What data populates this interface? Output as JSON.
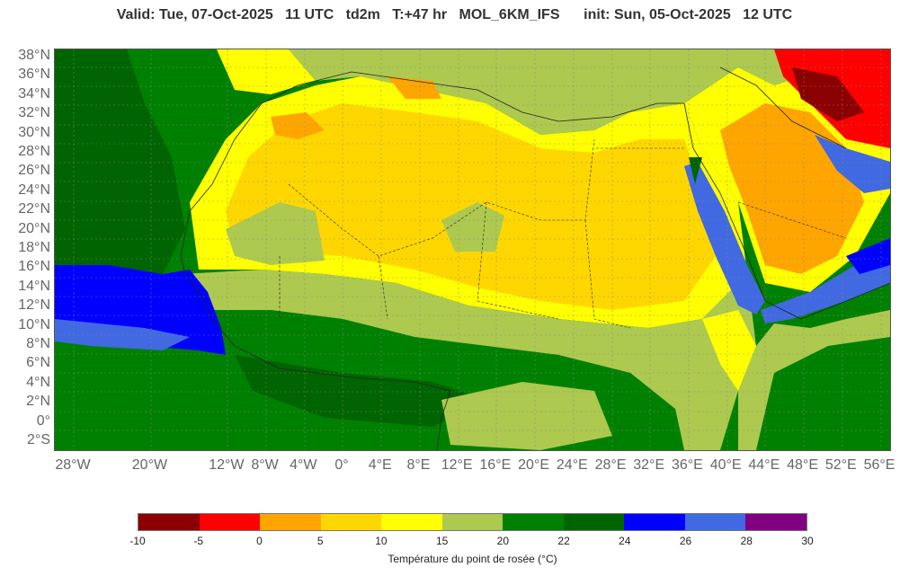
{
  "header": {
    "title": "Valid: Tue, 07-Oct-2025   11 UTC   td2m   T:+47 hr   MOL_6KM_IFS      init: Sun, 05-Oct-2025   12 UTC"
  },
  "map": {
    "region": "North Africa and Arabian Peninsula",
    "projection": "equirectangular",
    "lon_range": [
      -30,
      57
    ],
    "lat_range": [
      -4,
      38
    ],
    "lat_labels": [
      "38°N",
      "36°N",
      "34°N",
      "32°N",
      "30°N",
      "28°N",
      "26°N",
      "24°N",
      "22°N",
      "20°N",
      "18°N",
      "16°N",
      "14°N",
      "12°N",
      "10°N",
      "8°N",
      "6°N",
      "4°N",
      "2°N",
      "0°",
      "2°S"
    ],
    "lon_labels": [
      "28°W",
      "20°W",
      "12°W",
      "8°W",
      "4°W",
      "0°",
      "4°E",
      "8°E",
      "12°E",
      "16°E",
      "20°E",
      "24°E",
      "28°E",
      "32°E",
      "36°E",
      "40°E",
      "44°E",
      "48°E",
      "52°E",
      "56°E"
    ]
  },
  "colorbar": {
    "label": "Température du point de rosée (°C)",
    "ticks": [
      "-10",
      "-5",
      "0",
      "5",
      "10",
      "15",
      "20",
      "22",
      "24",
      "26",
      "28",
      "30"
    ],
    "colors": [
      "#8b0000",
      "#ff0000",
      "#ffa500",
      "#ffd700",
      "#ffff00",
      "#adc94f",
      "#008000",
      "#006400",
      "#0000ff",
      "#4169e1",
      "#800080"
    ]
  }
}
